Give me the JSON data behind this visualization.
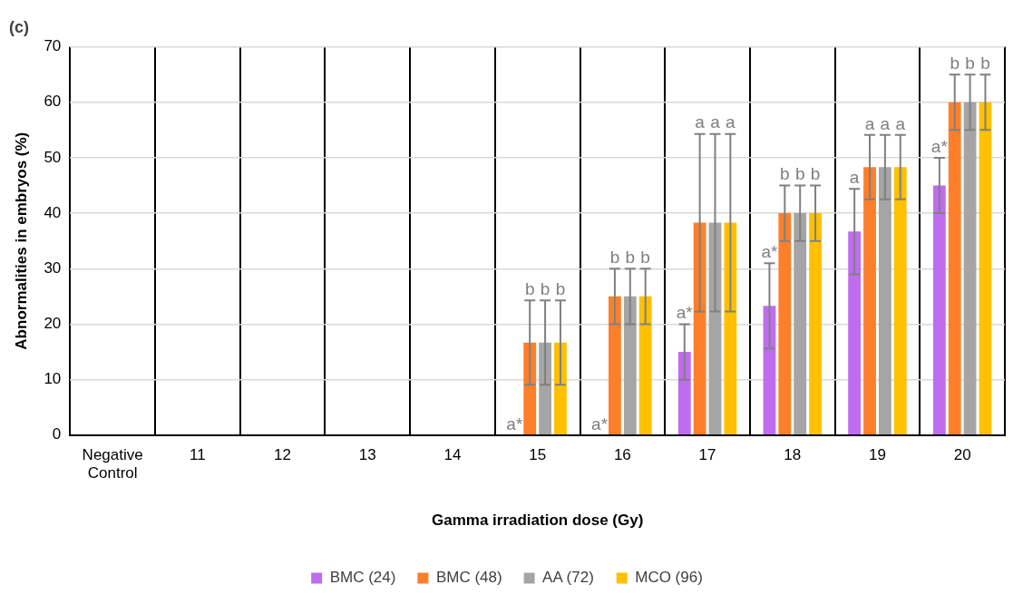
{
  "chart_data": {
    "type": "bar",
    "title": "(c)",
    "xlabel": "Gamma irradiation dose (Gy)",
    "ylabel": "Abnormalities in embryos (%)",
    "categories": [
      "Negative Control",
      "11",
      "12",
      "13",
      "14",
      "15",
      "16",
      "17",
      "18",
      "19",
      "20"
    ],
    "series": [
      {
        "name": "BMC (24)",
        "color": "#c06cf0",
        "values": [
          0,
          0,
          0,
          0,
          0,
          0,
          0,
          15,
          23.3,
          36.7,
          45
        ],
        "errors": [
          null,
          null,
          null,
          null,
          null,
          null,
          null,
          5,
          7.7,
          7.7,
          5
        ]
      },
      {
        "name": "BMC (48)",
        "color": "#fe7f2a",
        "values": [
          0,
          0,
          0,
          0,
          0,
          16.7,
          25,
          38.3,
          40,
          48.3,
          60
        ],
        "errors": [
          null,
          null,
          null,
          null,
          null,
          7.6,
          5,
          16,
          5,
          5.8,
          5
        ]
      },
      {
        "name": "AA (72)",
        "color": "#a5a5a5",
        "values": [
          0,
          0,
          0,
          0,
          0,
          16.7,
          25,
          38.3,
          40,
          48.3,
          60
        ],
        "errors": [
          null,
          null,
          null,
          null,
          null,
          7.6,
          5,
          16,
          5,
          5.8,
          5
        ]
      },
      {
        "name": "MCO (96)",
        "color": "#ffc000",
        "values": [
          0,
          0,
          0,
          0,
          0,
          16.7,
          25,
          38.3,
          40,
          48.3,
          60
        ],
        "errors": [
          null,
          null,
          null,
          null,
          null,
          7.6,
          5,
          16,
          5,
          5.8,
          5
        ]
      }
    ],
    "annotations": [
      {
        "text": "a*",
        "x": "15",
        "y": 0
      },
      {
        "text": "b",
        "x": "15",
        "y": 24.3
      },
      {
        "text": "b",
        "x": "15",
        "y": 24.3
      },
      {
        "text": "b",
        "x": "15",
        "y": 24.3
      },
      {
        "text": "a*",
        "x": "16",
        "y": 0
      },
      {
        "text": "b",
        "x": "16",
        "y": 30
      },
      {
        "text": "b",
        "x": "16",
        "y": 30
      },
      {
        "text": "b",
        "x": "16",
        "y": 30
      },
      {
        "text": "a*",
        "x": "17",
        "y": 20
      },
      {
        "text": "a",
        "x": "17",
        "y": 54.3
      },
      {
        "text": "a",
        "x": "17",
        "y": 54.3
      },
      {
        "text": "a",
        "x": "17",
        "y": 54.3
      },
      {
        "text": "a*",
        "x": "18",
        "y": 31
      },
      {
        "text": "b",
        "x": "18",
        "y": 45
      },
      {
        "text": "b",
        "x": "18",
        "y": 45
      },
      {
        "text": "b",
        "x": "18",
        "y": 45
      },
      {
        "text": "a",
        "x": "19",
        "y": 44.4
      },
      {
        "text": "a",
        "x": "19",
        "y": 54.1
      },
      {
        "text": "a",
        "x": "19",
        "y": 54.1
      },
      {
        "text": "a",
        "x": "19",
        "y": 54.1
      },
      {
        "text": "a*",
        "x": "20",
        "y": 50
      },
      {
        "text": "b",
        "x": "20",
        "y": 65
      },
      {
        "text": "b",
        "x": "20",
        "y": 65
      },
      {
        "text": "b",
        "x": "20",
        "y": 65
      }
    ],
    "ylim": [
      0,
      70
    ],
    "yticks": [
      0,
      10,
      20,
      30,
      40,
      50,
      60,
      70
    ],
    "grid": true,
    "legend": "bottom"
  }
}
